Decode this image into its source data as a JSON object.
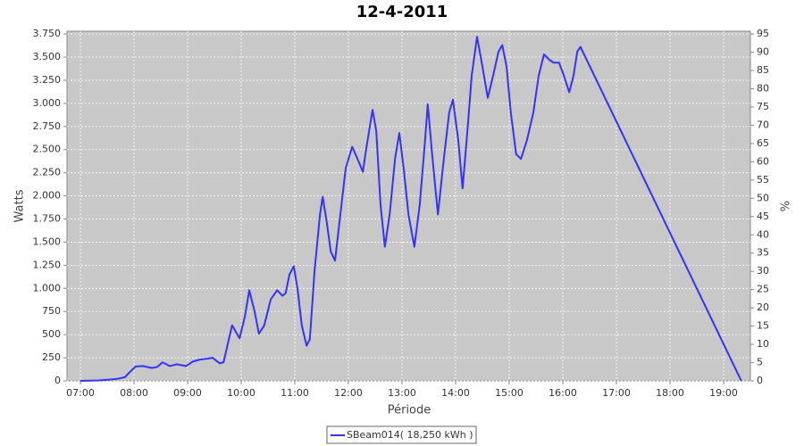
{
  "chart_data": {
    "type": "line",
    "title": "12-4-2011",
    "x_label": "Période",
    "y_label": "Watts",
    "y2_label": "%",
    "x": [
      7.0,
      7.33,
      7.67,
      7.83,
      7.93,
      8.03,
      8.17,
      8.33,
      8.43,
      8.53,
      8.67,
      8.8,
      8.97,
      9.1,
      9.23,
      9.37,
      9.47,
      9.53,
      9.6,
      9.67,
      9.77,
      9.83,
      9.9,
      9.97,
      10.07,
      10.15,
      10.25,
      10.33,
      10.43,
      10.55,
      10.67,
      10.77,
      10.83,
      10.9,
      10.98,
      11.05,
      11.13,
      11.22,
      11.28,
      11.37,
      11.47,
      11.52,
      11.6,
      11.67,
      11.75,
      11.83,
      11.95,
      12.07,
      12.17,
      12.27,
      12.33,
      12.45,
      12.52,
      12.6,
      12.68,
      12.77,
      12.87,
      12.95,
      13.03,
      13.12,
      13.23,
      13.33,
      13.43,
      13.48,
      13.57,
      13.67,
      13.78,
      13.88,
      13.95,
      14.05,
      14.13,
      14.22,
      14.3,
      14.4,
      14.5,
      14.6,
      14.7,
      14.8,
      14.87,
      14.95,
      15.03,
      15.13,
      15.22,
      15.33,
      15.45,
      15.55,
      15.65,
      15.75,
      15.83,
      15.93,
      16.02,
      16.12,
      16.2,
      16.27,
      16.33,
      19.33
    ],
    "series": [
      {
        "name": "SBeam014( 18,250 kWh )",
        "color": "#3333ff",
        "values": [
          0,
          5,
          20,
          40,
          100,
          155,
          160,
          140,
          150,
          200,
          160,
          180,
          160,
          210,
          230,
          240,
          250,
          220,
          190,
          200,
          450,
          600,
          530,
          460,
          700,
          980,
          750,
          510,
          600,
          880,
          980,
          920,
          950,
          1150,
          1240,
          1000,
          600,
          380,
          450,
          1200,
          1800,
          1990,
          1700,
          1400,
          1300,
          1700,
          2300,
          2530,
          2400,
          2260,
          2500,
          2930,
          2700,
          1900,
          1450,
          1800,
          2400,
          2680,
          2300,
          1800,
          1450,
          1900,
          2600,
          2990,
          2400,
          1800,
          2400,
          2900,
          3040,
          2600,
          2080,
          2700,
          3300,
          3720,
          3400,
          3060,
          3300,
          3560,
          3630,
          3400,
          2900,
          2450,
          2400,
          2600,
          2900,
          3300,
          3530,
          3470,
          3440,
          3440,
          3300,
          3120,
          3300,
          3560,
          3610,
          0
        ]
      }
    ],
    "xlim": [
      6.75,
      19.5
    ],
    "xticks": [
      {
        "value": 7,
        "label": "07:00"
      },
      {
        "value": 8,
        "label": "08:00"
      },
      {
        "value": 9,
        "label": "09:00"
      },
      {
        "value": 10,
        "label": "10:00"
      },
      {
        "value": 11,
        "label": "11:00"
      },
      {
        "value": 12,
        "label": "12:00"
      },
      {
        "value": 13,
        "label": "13:00"
      },
      {
        "value": 14,
        "label": "14:00"
      },
      {
        "value": 15,
        "label": "15:00"
      },
      {
        "value": 16,
        "label": "16:00"
      },
      {
        "value": 17,
        "label": "17:00"
      },
      {
        "value": 18,
        "label": "18:00"
      },
      {
        "value": 19,
        "label": "19:00"
      }
    ],
    "ylim": [
      0,
      3780
    ],
    "yticks": [
      0,
      250,
      500,
      750,
      {
        "value": 1000,
        "label": "1.000"
      },
      {
        "value": 1250,
        "label": "1.250"
      },
      {
        "value": 1500,
        "label": "1.500"
      },
      {
        "value": 1750,
        "label": "1.750"
      },
      {
        "value": 2000,
        "label": "2.000"
      },
      {
        "value": 2250,
        "label": "2.250"
      },
      {
        "value": 2500,
        "label": "2.500"
      },
      {
        "value": 2750,
        "label": "2.750"
      },
      {
        "value": 3000,
        "label": "3.000"
      },
      {
        "value": 3250,
        "label": "3.250"
      },
      {
        "value": 3500,
        "label": "3.500"
      },
      {
        "value": 3750,
        "label": "3.750"
      }
    ],
    "y2lim": [
      0,
      95.76
    ],
    "y2ticks": [
      0,
      5,
      10,
      15,
      20,
      25,
      30,
      35,
      40,
      45,
      50,
      55,
      60,
      65,
      70,
      75,
      80,
      85,
      90,
      95
    ],
    "grid": true,
    "plot_background": "#c8c8c8"
  }
}
